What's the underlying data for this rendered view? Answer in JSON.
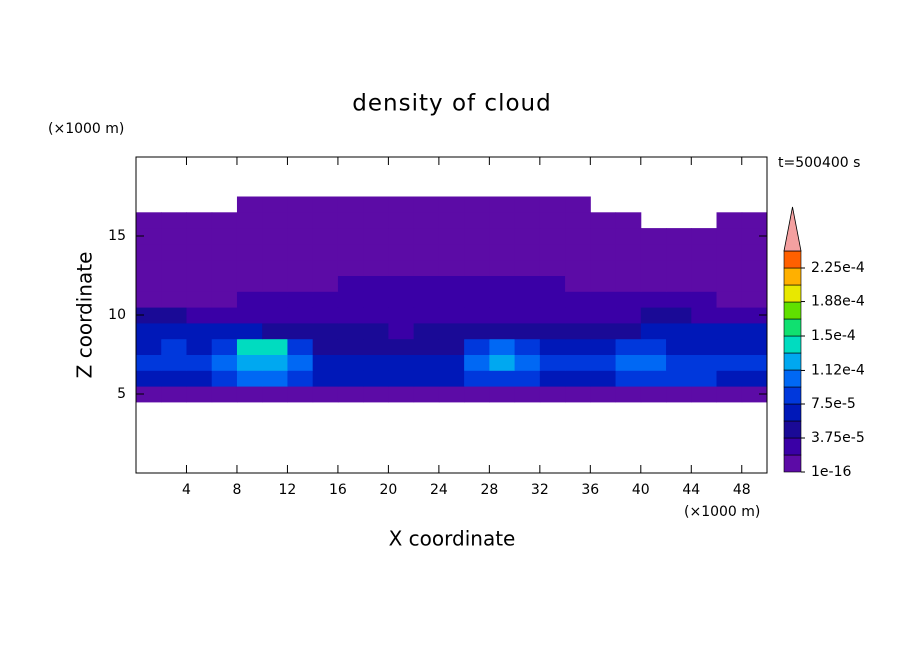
{
  "chart_data": {
    "type": "contour",
    "title": "density of cloud",
    "time_label": "t=500400 s",
    "x_label": "X coordinate",
    "y_label": "Z coordinate",
    "x_unit": "(×1000 m)",
    "y_unit": "(×1000 m)",
    "xlim": [
      0,
      50
    ],
    "ylim": [
      0,
      20
    ],
    "xticks": [
      4,
      8,
      12,
      16,
      20,
      24,
      28,
      32,
      36,
      40,
      44,
      48
    ],
    "yticks": [
      5,
      10,
      15
    ],
    "x": [
      1,
      3,
      5,
      7,
      9,
      11,
      13,
      15,
      17,
      19,
      21,
      23,
      25,
      27,
      29,
      31,
      33,
      35,
      37,
      39,
      41,
      43,
      45,
      47,
      49
    ],
    "y": [
      5,
      6,
      7,
      8,
      9,
      10,
      11,
      12,
      13,
      14,
      15,
      16,
      17
    ],
    "values": [
      [
        1e-05,
        1e-05,
        1e-05,
        1e-05,
        1e-05,
        1e-05,
        1e-05,
        1e-05,
        1e-05,
        1e-05,
        1e-05,
        1e-05,
        1e-05,
        1e-05,
        1e-05,
        1e-05,
        1e-05,
        1e-05,
        1e-05,
        1e-05,
        1e-05,
        1e-05,
        1e-05,
        1e-05,
        1e-05
      ],
      [
        6.5e-05,
        6.5e-05,
        7e-05,
        9e-05,
        9.5e-05,
        9.5e-05,
        9e-05,
        6e-05,
        7e-05,
        6.5e-05,
        6.5e-05,
        6e-05,
        6.5e-05,
        8e-05,
        8.5e-05,
        8e-05,
        7e-05,
        6.5e-05,
        6.5e-05,
        8e-05,
        8.5e-05,
        8e-05,
        7.5e-05,
        7e-05,
        7e-05
      ],
      [
        8e-05,
        8.5e-05,
        8e-05,
        0.000105,
        0.00012,
        0.00012,
        0.0001,
        6e-05,
        7e-05,
        7e-05,
        6.5e-05,
        6e-05,
        7e-05,
        0.00011,
        0.000115,
        0.000105,
        8e-05,
        8e-05,
        8e-05,
        0.0001,
        0.00011,
        9e-05,
        8.5e-05,
        9e-05,
        9e-05
      ],
      [
        7e-05,
        7.5e-05,
        6.5e-05,
        8e-05,
        0.000135,
        0.00014,
        9e-05,
        5e-05,
        5e-05,
        4.5e-05,
        4.5e-05,
        5e-05,
        5e-05,
        9e-05,
        0.000105,
        8e-05,
        6e-05,
        6e-05,
        6.5e-05,
        7.5e-05,
        8e-05,
        7e-05,
        7e-05,
        6.5e-05,
        7e-05
      ],
      [
        6e-05,
        6.5e-05,
        6e-05,
        6e-05,
        6e-05,
        5.5e-05,
        5e-05,
        4e-05,
        4e-05,
        4e-05,
        3.5e-05,
        4e-05,
        4e-05,
        4.5e-05,
        4.5e-05,
        4e-05,
        4e-05,
        4e-05,
        4.5e-05,
        5.5e-05,
        6e-05,
        6e-05,
        6.5e-05,
        6e-05,
        6.5e-05
      ],
      [
        4.5e-05,
        4e-05,
        3.5e-05,
        3e-05,
        3e-05,
        3e-05,
        3e-05,
        3e-05,
        3e-05,
        3e-05,
        3e-05,
        3e-05,
        3e-05,
        3e-05,
        3e-05,
        3e-05,
        3e-05,
        3e-05,
        3e-05,
        3.5e-05,
        4e-05,
        4e-05,
        3.5e-05,
        3.5e-05,
        3e-05
      ],
      [
        5e-06,
        5e-06,
        5e-06,
        5e-06,
        2.5e-05,
        2.5e-05,
        2.5e-05,
        2.5e-05,
        2.5e-05,
        2.5e-05,
        2.5e-05,
        2.5e-05,
        2.5e-05,
        2.5e-05,
        2.5e-05,
        2.5e-05,
        2.5e-05,
        2.5e-05,
        2.5e-05,
        2.5e-05,
        3e-05,
        2.5e-05,
        2.5e-05,
        5e-06,
        5e-06
      ],
      [
        5e-06,
        5e-06,
        5e-06,
        5e-06,
        5e-06,
        5e-06,
        5e-06,
        5e-06,
        2.5e-05,
        2.5e-05,
        2.5e-05,
        2.5e-05,
        2.5e-05,
        2.5e-05,
        2.5e-05,
        2.5e-05,
        2.5e-05,
        5e-06,
        5e-06,
        5e-06,
        5e-06,
        5e-06,
        5e-06,
        5e-06,
        5e-06
      ],
      [
        5e-06,
        5e-06,
        5e-06,
        5e-06,
        5e-06,
        5e-06,
        5e-06,
        5e-06,
        5e-06,
        5e-06,
        5e-06,
        5e-06,
        5e-06,
        5e-06,
        5e-06,
        5e-06,
        5e-06,
        5e-06,
        5e-06,
        5e-06,
        5e-06,
        5e-06,
        5e-06,
        5e-06,
        5e-06
      ],
      [
        5e-06,
        5e-06,
        5e-06,
        5e-06,
        5e-06,
        5e-06,
        5e-06,
        5e-06,
        5e-06,
        5e-06,
        5e-06,
        5e-06,
        5e-06,
        5e-06,
        5e-06,
        5e-06,
        5e-06,
        5e-06,
        5e-06,
        5e-06,
        5e-06,
        5e-06,
        5e-06,
        5e-06,
        5e-06
      ],
      [
        5e-06,
        5e-06,
        5e-06,
        5e-06,
        5e-06,
        5e-06,
        5e-06,
        5e-06,
        5e-06,
        5e-06,
        5e-06,
        5e-06,
        5e-06,
        5e-06,
        5e-06,
        5e-06,
        5e-06,
        5e-06,
        5e-06,
        5e-06,
        5e-06,
        5e-06,
        5e-06,
        5e-06,
        5e-06
      ],
      [
        5e-06,
        5e-06,
        5e-06,
        5e-06,
        5e-06,
        5e-06,
        5e-06,
        5e-06,
        5e-06,
        5e-06,
        5e-06,
        5e-06,
        5e-06,
        5e-06,
        5e-06,
        5e-06,
        5e-06,
        5e-06,
        5e-06,
        5e-06,
        null,
        null,
        null,
        5e-06,
        5e-06
      ],
      [
        null,
        null,
        null,
        null,
        5e-06,
        5e-06,
        5e-06,
        5e-06,
        5e-06,
        5e-06,
        5e-06,
        5e-06,
        5e-06,
        5e-06,
        5e-06,
        5e-06,
        5e-06,
        5e-06,
        null,
        null,
        null,
        null,
        null,
        null,
        null
      ]
    ],
    "clim": [
      1e-16,
      0.00024375
    ],
    "levels": [
      1e-16,
      1.875e-05,
      3.75e-05,
      5.625e-05,
      7.5e-05,
      9.375e-05,
      0.0001125,
      0.00013125,
      0.00015,
      0.00016875,
      0.0001875,
      0.00020625,
      0.000225,
      0.00024375
    ],
    "colors": [
      "#5c0ba6",
      "#3a00a6",
      "#1a0a96",
      "#0018b8",
      "#0038dc",
      "#0068f4",
      "#00a8f0",
      "#00dcc0",
      "#10e070",
      "#60e000",
      "#e8e800",
      "#ffb000",
      "#ff6000",
      "#ff2000"
    ],
    "extend_color": "#f4a0a0",
    "cticks": [
      {
        "value": 1e-16,
        "label": "1e-16"
      },
      {
        "value": 3.75e-05,
        "label": "3.75e-5"
      },
      {
        "value": 7.5e-05,
        "label": "7.5e-5"
      },
      {
        "value": 0.000112,
        "label": "1.12e-4"
      },
      {
        "value": 0.00015,
        "label": "1.5e-4"
      },
      {
        "value": 0.000188,
        "label": "1.88e-4"
      },
      {
        "value": 0.000225,
        "label": "2.25e-4"
      }
    ]
  }
}
